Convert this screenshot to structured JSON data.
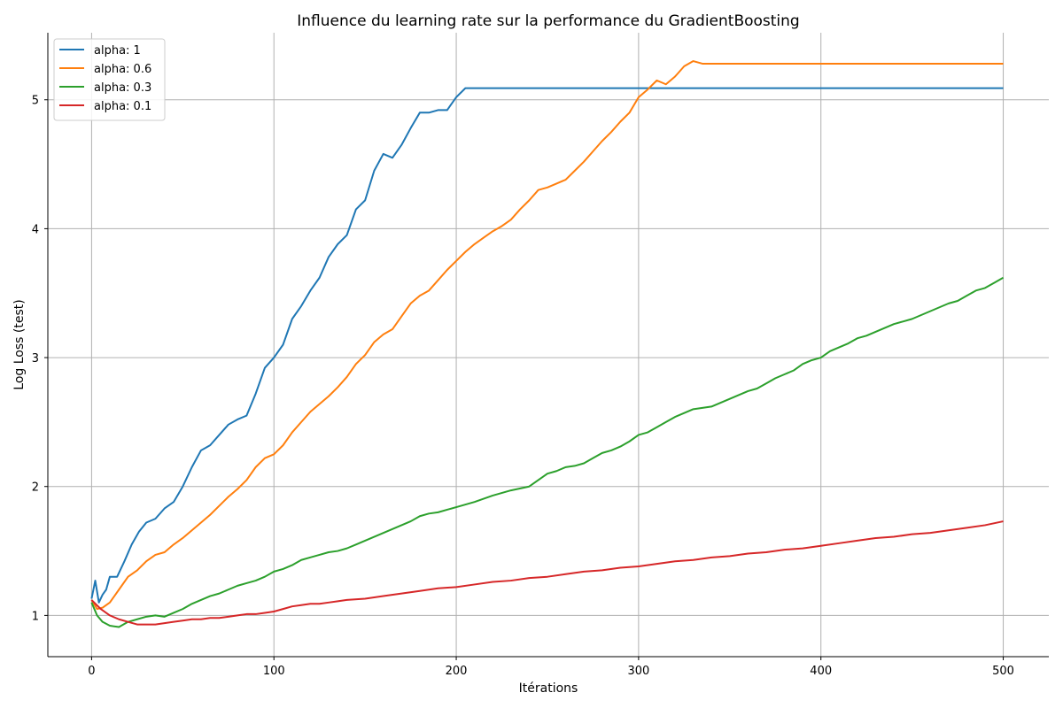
{
  "chart_data": {
    "type": "line",
    "title": "Influence du learning rate sur la performance du GradientBoosting",
    "xlabel": "Itérations",
    "ylabel": "Log Loss (test)",
    "xlim": [
      -24,
      525
    ],
    "ylim": [
      0.68,
      5.52
    ],
    "xticks": [
      0,
      100,
      200,
      300,
      400,
      500
    ],
    "yticks": [
      1,
      2,
      3,
      4,
      5
    ],
    "grid": true,
    "legend_position": "top-left",
    "series": [
      {
        "name": "alpha: 1",
        "color": "#1f77b4",
        "points": [
          [
            0,
            1.13
          ],
          [
            2,
            1.27
          ],
          [
            4,
            1.1
          ],
          [
            6,
            1.16
          ],
          [
            8,
            1.2
          ],
          [
            10,
            1.3
          ],
          [
            14,
            1.3
          ],
          [
            18,
            1.42
          ],
          [
            22,
            1.55
          ],
          [
            26,
            1.65
          ],
          [
            30,
            1.72
          ],
          [
            35,
            1.75
          ],
          [
            40,
            1.83
          ],
          [
            45,
            1.88
          ],
          [
            50,
            2.0
          ],
          [
            55,
            2.15
          ],
          [
            60,
            2.28
          ],
          [
            65,
            2.32
          ],
          [
            70,
            2.4
          ],
          [
            75,
            2.48
          ],
          [
            80,
            2.52
          ],
          [
            85,
            2.55
          ],
          [
            90,
            2.72
          ],
          [
            95,
            2.92
          ],
          [
            100,
            3.0
          ],
          [
            105,
            3.1
          ],
          [
            110,
            3.3
          ],
          [
            115,
            3.4
          ],
          [
            120,
            3.52
          ],
          [
            125,
            3.62
          ],
          [
            130,
            3.78
          ],
          [
            135,
            3.88
          ],
          [
            140,
            3.95
          ],
          [
            145,
            4.15
          ],
          [
            150,
            4.22
          ],
          [
            155,
            4.45
          ],
          [
            160,
            4.58
          ],
          [
            165,
            4.55
          ],
          [
            170,
            4.65
          ],
          [
            175,
            4.78
          ],
          [
            180,
            4.9
          ],
          [
            185,
            4.9
          ],
          [
            190,
            4.92
          ],
          [
            195,
            4.92
          ],
          [
            200,
            5.02
          ],
          [
            205,
            5.09
          ],
          [
            500,
            5.09
          ]
        ]
      },
      {
        "name": "alpha: 0.6",
        "color": "#ff7f0e",
        "points": [
          [
            0,
            1.12
          ],
          [
            3,
            1.05
          ],
          [
            6,
            1.06
          ],
          [
            10,
            1.1
          ],
          [
            15,
            1.2
          ],
          [
            20,
            1.3
          ],
          [
            25,
            1.35
          ],
          [
            30,
            1.42
          ],
          [
            35,
            1.47
          ],
          [
            40,
            1.49
          ],
          [
            45,
            1.55
          ],
          [
            50,
            1.6
          ],
          [
            55,
            1.66
          ],
          [
            60,
            1.72
          ],
          [
            65,
            1.78
          ],
          [
            70,
            1.85
          ],
          [
            75,
            1.92
          ],
          [
            80,
            1.98
          ],
          [
            85,
            2.05
          ],
          [
            90,
            2.15
          ],
          [
            95,
            2.22
          ],
          [
            100,
            2.25
          ],
          [
            105,
            2.32
          ],
          [
            110,
            2.42
          ],
          [
            115,
            2.5
          ],
          [
            120,
            2.58
          ],
          [
            125,
            2.64
          ],
          [
            130,
            2.7
          ],
          [
            135,
            2.77
          ],
          [
            140,
            2.85
          ],
          [
            145,
            2.95
          ],
          [
            150,
            3.02
          ],
          [
            155,
            3.12
          ],
          [
            160,
            3.18
          ],
          [
            165,
            3.22
          ],
          [
            170,
            3.32
          ],
          [
            175,
            3.42
          ],
          [
            180,
            3.48
          ],
          [
            185,
            3.52
          ],
          [
            190,
            3.6
          ],
          [
            195,
            3.68
          ],
          [
            200,
            3.75
          ],
          [
            205,
            3.82
          ],
          [
            210,
            3.88
          ],
          [
            215,
            3.93
          ],
          [
            220,
            3.98
          ],
          [
            225,
            4.02
          ],
          [
            230,
            4.07
          ],
          [
            235,
            4.15
          ],
          [
            240,
            4.22
          ],
          [
            245,
            4.3
          ],
          [
            250,
            4.32
          ],
          [
            255,
            4.35
          ],
          [
            260,
            4.38
          ],
          [
            265,
            4.45
          ],
          [
            270,
            4.52
          ],
          [
            275,
            4.6
          ],
          [
            280,
            4.68
          ],
          [
            285,
            4.75
          ],
          [
            290,
            4.83
          ],
          [
            295,
            4.9
          ],
          [
            300,
            5.02
          ],
          [
            305,
            5.08
          ],
          [
            310,
            5.15
          ],
          [
            315,
            5.12
          ],
          [
            320,
            5.18
          ],
          [
            325,
            5.26
          ],
          [
            330,
            5.3
          ],
          [
            335,
            5.28
          ],
          [
            340,
            5.28
          ],
          [
            500,
            5.28
          ]
        ]
      },
      {
        "name": "alpha: 0.3",
        "color": "#2ca02c",
        "points": [
          [
            0,
            1.1
          ],
          [
            3,
            1.0
          ],
          [
            6,
            0.95
          ],
          [
            10,
            0.92
          ],
          [
            15,
            0.91
          ],
          [
            20,
            0.95
          ],
          [
            25,
            0.97
          ],
          [
            30,
            0.99
          ],
          [
            35,
            1.0
          ],
          [
            40,
            0.99
          ],
          [
            45,
            1.02
          ],
          [
            50,
            1.05
          ],
          [
            55,
            1.09
          ],
          [
            60,
            1.12
          ],
          [
            65,
            1.15
          ],
          [
            70,
            1.17
          ],
          [
            75,
            1.2
          ],
          [
            80,
            1.23
          ],
          [
            85,
            1.25
          ],
          [
            90,
            1.27
          ],
          [
            95,
            1.3
          ],
          [
            100,
            1.34
          ],
          [
            105,
            1.36
          ],
          [
            110,
            1.39
          ],
          [
            115,
            1.43
          ],
          [
            120,
            1.45
          ],
          [
            125,
            1.47
          ],
          [
            130,
            1.49
          ],
          [
            135,
            1.5
          ],
          [
            140,
            1.52
          ],
          [
            145,
            1.55
          ],
          [
            150,
            1.58
          ],
          [
            155,
            1.61
          ],
          [
            160,
            1.64
          ],
          [
            165,
            1.67
          ],
          [
            170,
            1.7
          ],
          [
            175,
            1.73
          ],
          [
            180,
            1.77
          ],
          [
            185,
            1.79
          ],
          [
            190,
            1.8
          ],
          [
            195,
            1.82
          ],
          [
            200,
            1.84
          ],
          [
            210,
            1.88
          ],
          [
            220,
            1.93
          ],
          [
            230,
            1.97
          ],
          [
            240,
            2.0
          ],
          [
            245,
            2.05
          ],
          [
            250,
            2.1
          ],
          [
            255,
            2.12
          ],
          [
            260,
            2.15
          ],
          [
            265,
            2.16
          ],
          [
            270,
            2.18
          ],
          [
            275,
            2.22
          ],
          [
            280,
            2.26
          ],
          [
            285,
            2.28
          ],
          [
            290,
            2.31
          ],
          [
            295,
            2.35
          ],
          [
            300,
            2.4
          ],
          [
            305,
            2.42
          ],
          [
            310,
            2.46
          ],
          [
            315,
            2.5
          ],
          [
            320,
            2.54
          ],
          [
            325,
            2.57
          ],
          [
            330,
            2.6
          ],
          [
            335,
            2.61
          ],
          [
            340,
            2.62
          ],
          [
            345,
            2.65
          ],
          [
            350,
            2.68
          ],
          [
            355,
            2.71
          ],
          [
            360,
            2.74
          ],
          [
            365,
            2.76
          ],
          [
            370,
            2.8
          ],
          [
            375,
            2.84
          ],
          [
            380,
            2.87
          ],
          [
            385,
            2.9
          ],
          [
            390,
            2.95
          ],
          [
            395,
            2.98
          ],
          [
            400,
            3.0
          ],
          [
            405,
            3.05
          ],
          [
            410,
            3.08
          ],
          [
            415,
            3.11
          ],
          [
            420,
            3.15
          ],
          [
            425,
            3.17
          ],
          [
            430,
            3.2
          ],
          [
            435,
            3.23
          ],
          [
            440,
            3.26
          ],
          [
            445,
            3.28
          ],
          [
            450,
            3.3
          ],
          [
            455,
            3.33
          ],
          [
            460,
            3.36
          ],
          [
            465,
            3.39
          ],
          [
            470,
            3.42
          ],
          [
            475,
            3.44
          ],
          [
            480,
            3.48
          ],
          [
            485,
            3.52
          ],
          [
            490,
            3.54
          ],
          [
            495,
            3.58
          ],
          [
            500,
            3.62
          ]
        ]
      },
      {
        "name": "alpha: 0.1",
        "color": "#d62728",
        "points": [
          [
            0,
            1.12
          ],
          [
            5,
            1.05
          ],
          [
            10,
            1.0
          ],
          [
            15,
            0.97
          ],
          [
            20,
            0.95
          ],
          [
            25,
            0.93
          ],
          [
            30,
            0.93
          ],
          [
            35,
            0.93
          ],
          [
            40,
            0.94
          ],
          [
            45,
            0.95
          ],
          [
            50,
            0.96
          ],
          [
            55,
            0.97
          ],
          [
            60,
            0.97
          ],
          [
            65,
            0.98
          ],
          [
            70,
            0.98
          ],
          [
            75,
            0.99
          ],
          [
            80,
            1.0
          ],
          [
            85,
            1.01
          ],
          [
            90,
            1.01
          ],
          [
            95,
            1.02
          ],
          [
            100,
            1.03
          ],
          [
            105,
            1.05
          ],
          [
            110,
            1.07
          ],
          [
            115,
            1.08
          ],
          [
            120,
            1.09
          ],
          [
            125,
            1.09
          ],
          [
            130,
            1.1
          ],
          [
            135,
            1.11
          ],
          [
            140,
            1.12
          ],
          [
            150,
            1.13
          ],
          [
            160,
            1.15
          ],
          [
            170,
            1.17
          ],
          [
            180,
            1.19
          ],
          [
            190,
            1.21
          ],
          [
            200,
            1.22
          ],
          [
            210,
            1.24
          ],
          [
            220,
            1.26
          ],
          [
            230,
            1.27
          ],
          [
            240,
            1.29
          ],
          [
            250,
            1.3
          ],
          [
            260,
            1.32
          ],
          [
            270,
            1.34
          ],
          [
            280,
            1.35
          ],
          [
            290,
            1.37
          ],
          [
            300,
            1.38
          ],
          [
            310,
            1.4
          ],
          [
            320,
            1.42
          ],
          [
            330,
            1.43
          ],
          [
            340,
            1.45
          ],
          [
            350,
            1.46
          ],
          [
            360,
            1.48
          ],
          [
            370,
            1.49
          ],
          [
            380,
            1.51
          ],
          [
            390,
            1.52
          ],
          [
            400,
            1.54
          ],
          [
            410,
            1.56
          ],
          [
            420,
            1.58
          ],
          [
            430,
            1.6
          ],
          [
            440,
            1.61
          ],
          [
            450,
            1.63
          ],
          [
            460,
            1.64
          ],
          [
            470,
            1.66
          ],
          [
            480,
            1.68
          ],
          [
            490,
            1.7
          ],
          [
            500,
            1.73
          ]
        ]
      }
    ]
  }
}
